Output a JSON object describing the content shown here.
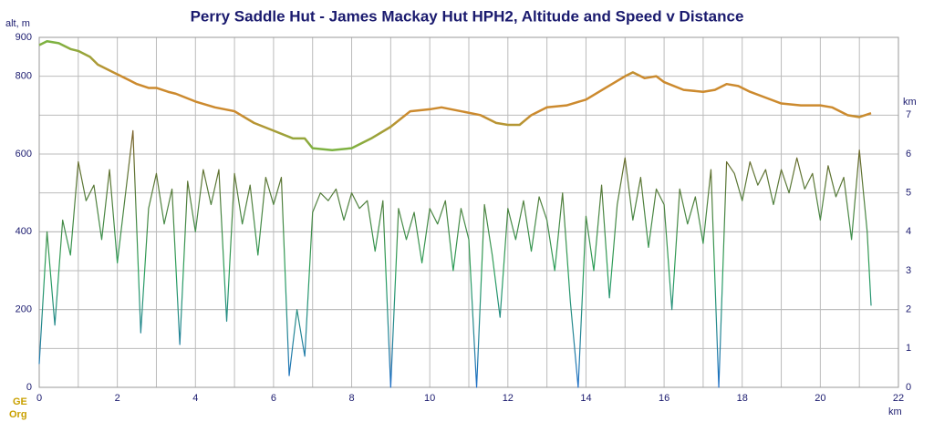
{
  "chart_data": {
    "type": "line",
    "title": "Perry Saddle Hut - James Mackay Hut HPH2, Altitude and Speed v Distance",
    "y_label": "alt, m",
    "y2_label": "km",
    "x_label": "km",
    "logo": [
      "GE",
      "Org"
    ],
    "xlim": [
      0,
      22
    ],
    "xticks": [
      0,
      2,
      4,
      6,
      8,
      10,
      12,
      14,
      16,
      18,
      20,
      22
    ],
    "ylim": [
      0,
      900
    ],
    "yticks": [
      0,
      200,
      400,
      600,
      800,
      900
    ],
    "y2lim": [
      0,
      9
    ],
    "y2ticks": [
      0,
      1,
      2,
      3,
      4,
      5,
      6,
      7
    ],
    "grid": true,
    "series": [
      {
        "name": "Altitude",
        "colors": [
          "#7cb342",
          "#cc8a2e",
          "#cc8a2e",
          "#7cb342"
        ],
        "x": [
          0,
          0.2,
          0.5,
          0.8,
          1,
          1.3,
          1.5,
          2,
          2.3,
          2.5,
          2.8,
          3,
          3.3,
          3.5,
          4,
          4.5,
          5,
          5.5,
          6,
          6.5,
          6.8,
          7,
          7.5,
          8,
          8.5,
          9,
          9.5,
          10,
          10.3,
          10.8,
          11.3,
          11.7,
          12,
          12.3,
          12.6,
          13,
          13.5,
          14,
          14.5,
          15,
          15.2,
          15.5,
          15.8,
          16,
          16.5,
          17,
          17.3,
          17.6,
          17.9,
          18.2,
          18.6,
          19,
          19.5,
          20,
          20.3,
          20.7,
          21,
          21.3
        ],
        "values": [
          880,
          890,
          885,
          870,
          865,
          850,
          830,
          805,
          790,
          780,
          770,
          770,
          760,
          755,
          735,
          720,
          710,
          680,
          660,
          640,
          640,
          615,
          610,
          615,
          640,
          670,
          710,
          715,
          720,
          710,
          700,
          680,
          675,
          675,
          700,
          720,
          725,
          740,
          770,
          800,
          810,
          795,
          800,
          785,
          765,
          760,
          765,
          780,
          775,
          760,
          745,
          730,
          725,
          725,
          720,
          700,
          695,
          705
        ]
      },
      {
        "name": "Speed",
        "axis": "y2",
        "colors": [
          "#1f6fc8",
          "#2aa05a",
          "#6b6a2a",
          "#c0392b"
        ],
        "x": [
          0,
          0.2,
          0.4,
          0.6,
          0.8,
          1,
          1.2,
          1.4,
          1.6,
          1.8,
          2,
          2.2,
          2.4,
          2.6,
          2.8,
          3,
          3.2,
          3.4,
          3.6,
          3.8,
          4,
          4.2,
          4.4,
          4.6,
          4.8,
          5,
          5.2,
          5.4,
          5.6,
          5.8,
          6,
          6.2,
          6.4,
          6.6,
          6.8,
          7,
          7.2,
          7.4,
          7.6,
          7.8,
          8,
          8.2,
          8.4,
          8.6,
          8.8,
          9,
          9.2,
          9.4,
          9.6,
          9.8,
          10,
          10.2,
          10.4,
          10.6,
          10.8,
          11,
          11.2,
          11.4,
          11.6,
          11.8,
          12,
          12.2,
          12.4,
          12.6,
          12.8,
          13,
          13.2,
          13.4,
          13.6,
          13.8,
          14,
          14.2,
          14.4,
          14.6,
          14.8,
          15,
          15.2,
          15.4,
          15.6,
          15.8,
          16,
          16.2,
          16.4,
          16.6,
          16.8,
          17,
          17.2,
          17.4,
          17.6,
          17.8,
          18,
          18.2,
          18.4,
          18.6,
          18.8,
          19,
          19.2,
          19.4,
          19.6,
          19.8,
          20,
          20.2,
          20.4,
          20.6,
          20.8,
          21,
          21.2,
          21.3
        ],
        "values": [
          0.6,
          4.0,
          1.6,
          4.3,
          3.4,
          5.8,
          4.8,
          5.2,
          3.8,
          5.6,
          3.2,
          4.9,
          6.6,
          1.4,
          4.6,
          5.5,
          4.2,
          5.1,
          1.1,
          5.3,
          4.0,
          5.6,
          4.7,
          5.6,
          1.7,
          5.5,
          4.2,
          5.2,
          3.4,
          5.4,
          4.7,
          5.4,
          0.3,
          2.0,
          0.8,
          4.5,
          5.0,
          4.8,
          5.1,
          4.3,
          5.0,
          4.6,
          4.8,
          3.5,
          4.8,
          0,
          4.6,
          3.8,
          4.5,
          3.2,
          4.6,
          4.2,
          4.8,
          3.0,
          4.6,
          3.8,
          0,
          4.7,
          3.4,
          1.8,
          4.6,
          3.8,
          4.8,
          3.5,
          4.9,
          4.3,
          3.0,
          5.0,
          2.2,
          0,
          4.4,
          3.0,
          5.2,
          2.3,
          4.7,
          5.9,
          4.3,
          5.4,
          3.6,
          5.1,
          4.7,
          2.0,
          5.1,
          4.2,
          4.9,
          3.7,
          5.6,
          0,
          5.8,
          5.5,
          4.8,
          5.8,
          5.2,
          5.6,
          4.7,
          5.6,
          5.0,
          5.9,
          5.1,
          5.5,
          4.3,
          5.7,
          4.9,
          5.4,
          3.8,
          6.1,
          4.0,
          2.1
        ]
      }
    ]
  }
}
